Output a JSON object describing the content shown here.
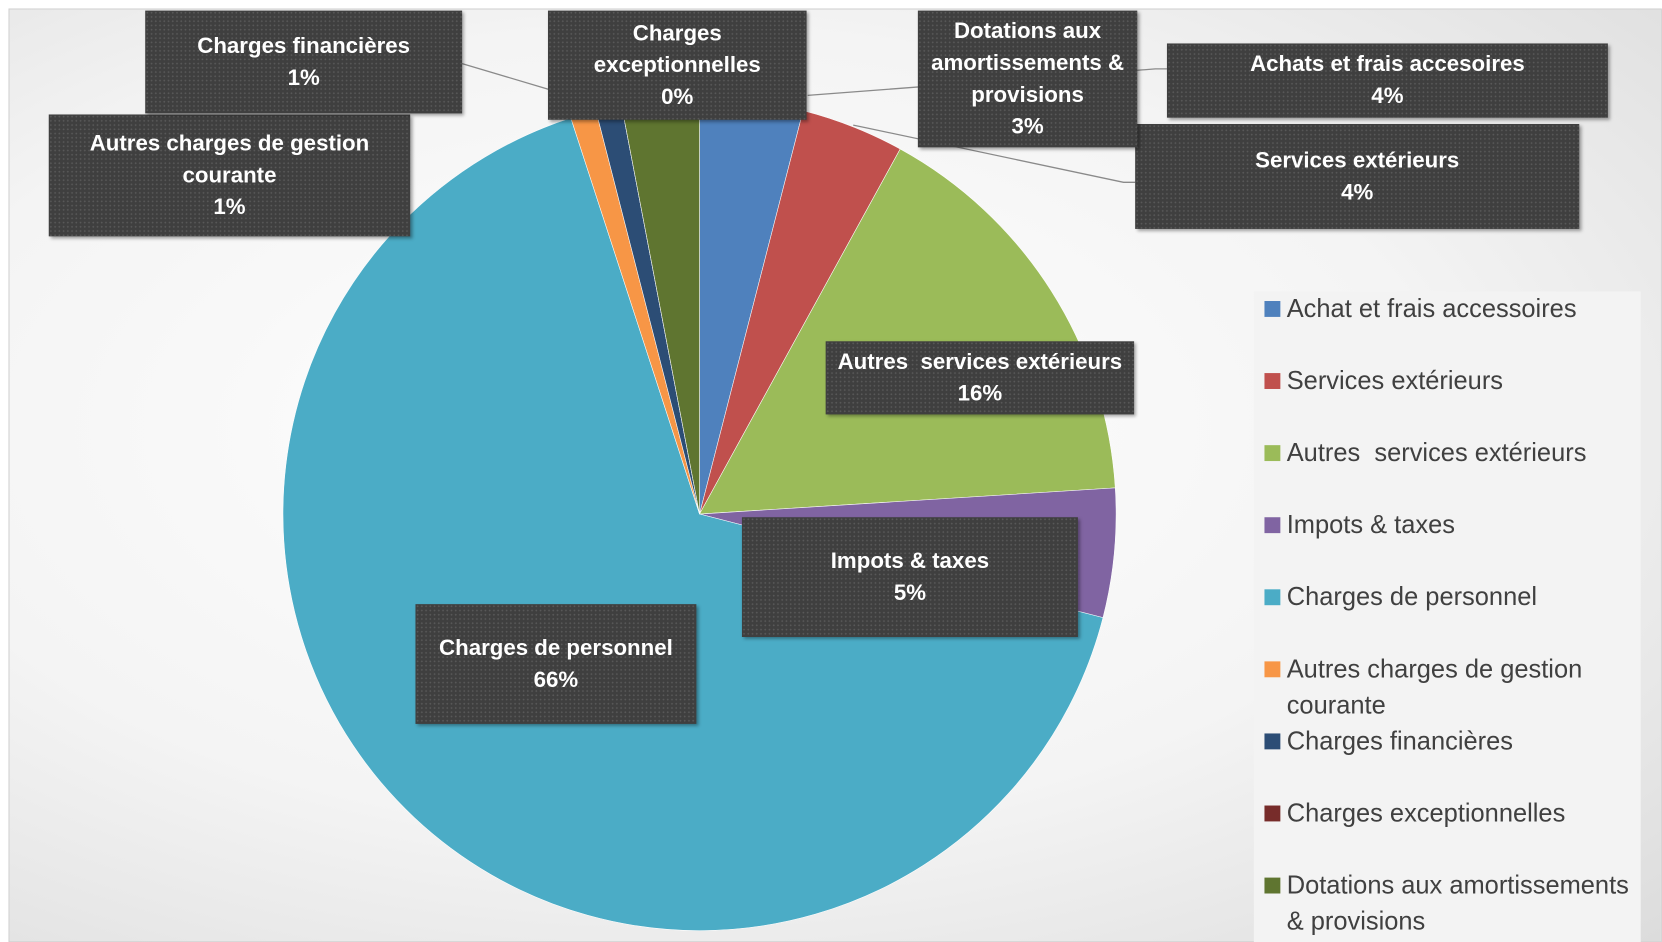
{
  "chart_data": {
    "type": "pie",
    "categories": [
      "Achat et frais accessoires",
      "Services extérieurs",
      "Autres  services extérieurs",
      "Impots & taxes",
      "Charges de personnel",
      "Autres charges de gestion courante",
      "Charges financières",
      "Charges exceptionnelles",
      "Dotations aux amortissements & provisions"
    ],
    "data_label_names": [
      "Achats et frais accesoires",
      "Services extérieurs",
      "Autres  services extérieurs",
      "Impots & taxes",
      "Charges de personnel",
      "Autres charges de gestion courante",
      "Charges financières",
      "Charges exceptionnelles",
      "Dotations aux amortissements & provisions"
    ],
    "values": [
      4,
      4,
      16,
      5,
      66,
      1,
      1,
      0,
      3
    ],
    "value_labels": [
      "4%",
      "4%",
      "16%",
      "5%",
      "66%",
      "1%",
      "1%",
      "0%",
      "3%"
    ],
    "colors": [
      "#4f81bd",
      "#c0504d",
      "#9bbb59",
      "#8064a2",
      "#4bacc6",
      "#f79646",
      "#2c4d75",
      "#772c2a",
      "#5f7530"
    ],
    "legend": "right"
  }
}
